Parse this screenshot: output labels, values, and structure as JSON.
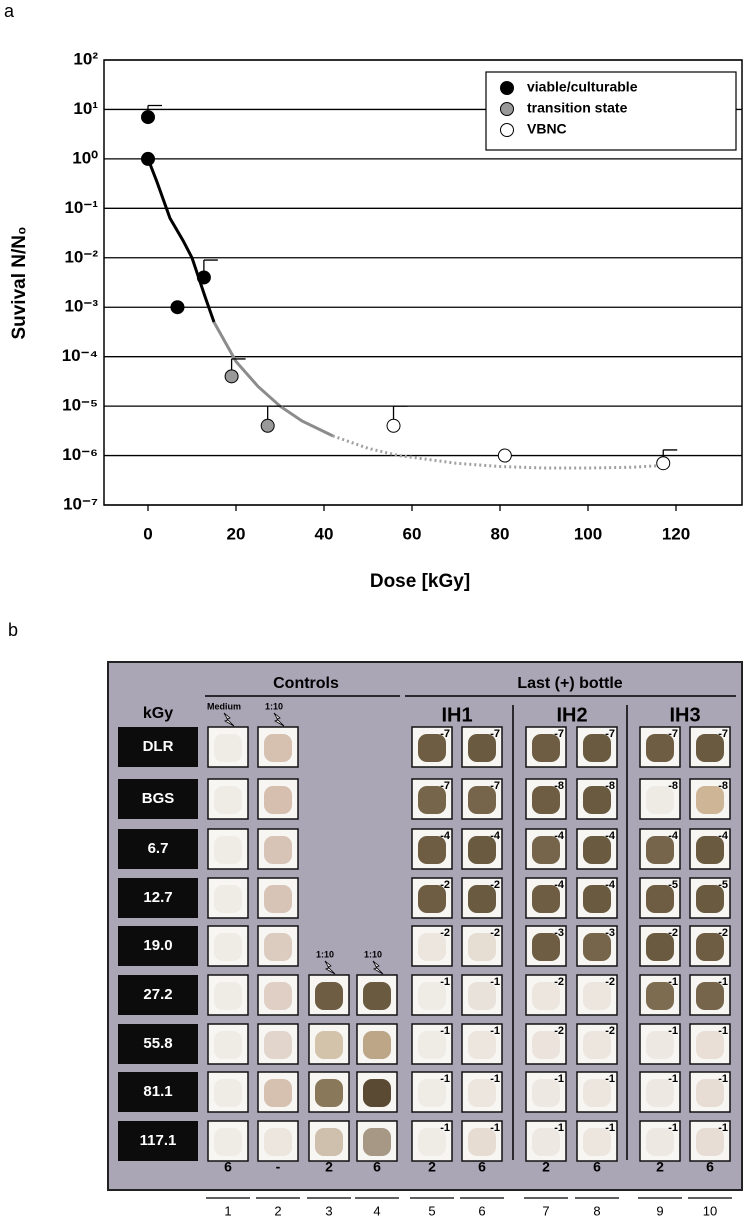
{
  "chart_data": {
    "type": "scatter",
    "panel_label": "a",
    "ylabel": "Suvival N/N₀",
    "xlabel": "Dose [kGy]",
    "xlim": [
      -10,
      135
    ],
    "xticks": [
      0,
      20,
      40,
      60,
      80,
      100,
      120
    ],
    "ylim": [
      1e-07,
      100
    ],
    "log_y": true,
    "grid": true,
    "legend": "upper right",
    "yticks": [
      {
        "value": 1e-07,
        "label": "10⁻⁷"
      },
      {
        "value": 1e-06,
        "label": "10⁻⁶"
      },
      {
        "value": 1e-05,
        "label": "10⁻⁵"
      },
      {
        "value": 0.0001,
        "label": "10⁻⁴"
      },
      {
        "value": 0.001,
        "label": "10⁻³"
      },
      {
        "value": 0.01,
        "label": "10⁻²"
      },
      {
        "value": 0.1,
        "label": "10⁻¹"
      },
      {
        "value": 1,
        "label": "10⁰"
      },
      {
        "value": 10,
        "label": "10¹"
      },
      {
        "value": 100,
        "label": "10²"
      }
    ],
    "series": [
      {
        "name": "viable/culturable",
        "color": "#000000",
        "x": [
          0,
          0,
          6.7,
          12.7
        ],
        "values": [
          7,
          1,
          0.001,
          0.004
        ],
        "errors": [
          5,
          null,
          null,
          0.005
        ]
      },
      {
        "name": "transition state",
        "color": "#999999",
        "x": [
          19.0,
          27.2
        ],
        "values": [
          4e-05,
          4e-06
        ],
        "errors": [
          5e-05,
          6e-06
        ]
      },
      {
        "name": "VBNC",
        "color": "#ffffff",
        "x": [
          55.8,
          81.1,
          117.1
        ],
        "values": [
          4e-06,
          1e-06,
          7e-07
        ],
        "errors": [
          6e-06,
          null,
          6e-07
        ]
      }
    ],
    "fit_segments": [
      {
        "color": "#000000",
        "dashed": false,
        "x": [
          0,
          2,
          5,
          8,
          10,
          13,
          15
        ],
        "values": [
          1,
          0.35,
          0.063,
          0.022,
          0.01,
          0.0016,
          0.0005
        ]
      },
      {
        "color": "#8c8c8c",
        "dashed": false,
        "x": [
          15,
          20,
          25,
          30,
          35,
          42
        ],
        "values": [
          0.0005,
          8e-05,
          2.5e-05,
          1e-05,
          5e-06,
          2.5e-06
        ]
      },
      {
        "color": "#a0a0a0",
        "dashed": true,
        "x": [
          42,
          50,
          57,
          70,
          80,
          90,
          100,
          110,
          117
        ],
        "values": [
          2.5e-06,
          1.4e-06,
          1e-06,
          7e-07,
          6e-07,
          5.6e-07,
          5.6e-07,
          5.8e-07,
          6.3e-07
        ]
      }
    ]
  },
  "panel_b": {
    "panel_label": "b",
    "controls": "Controls",
    "last_bottle": "Last (+) bottle",
    "groups": [
      "IH1",
      "IH2",
      "IH3"
    ],
    "kgy": "kGy",
    "annotations": [
      {
        "text": "Medium",
        "column": 0,
        "row": 0
      },
      {
        "text": "1:10",
        "column": 1,
        "row": 0
      },
      {
        "text": "1:10",
        "column": 2,
        "row": 5
      },
      {
        "text": "1:10",
        "column": 3,
        "row": 5
      }
    ],
    "rows": [
      {
        "label": "DLR",
        "cells": [
          {
            "color": "#efece6"
          },
          {
            "color": "#d6c0b0"
          },
          null,
          null,
          {
            "label": "-7",
            "color": "#6e5d43"
          },
          {
            "label": "-7",
            "color": "#6a5a40"
          },
          {
            "label": "-7",
            "color": "#6e5d43"
          },
          {
            "label": "-7",
            "color": "#6a5a40"
          },
          {
            "label": "-7",
            "color": "#6e5d43"
          },
          {
            "label": "-7",
            "color": "#6a5a40"
          }
        ]
      },
      {
        "label": "BGS",
        "cells": [
          {
            "color": "#efece6"
          },
          {
            "color": "#d6bfae"
          },
          null,
          null,
          {
            "label": "-7",
            "color": "#76654a"
          },
          {
            "label": "-7",
            "color": "#76654a"
          },
          {
            "label": "-8",
            "color": "#6e5d43"
          },
          {
            "label": "-8",
            "color": "#6a5a40"
          },
          {
            "label": "-8",
            "color": "#eeeae4"
          },
          {
            "label": "-8",
            "color": "#cdb596"
          }
        ]
      },
      {
        "label": "6.7",
        "cells": [
          {
            "color": "#efece6"
          },
          {
            "color": "#d8c4b6"
          },
          null,
          null,
          {
            "label": "-4",
            "color": "#6e5d43"
          },
          {
            "label": "-4",
            "color": "#6a5a40"
          },
          {
            "label": "-4",
            "color": "#76654a"
          },
          {
            "label": "-4",
            "color": "#6a5a40"
          },
          {
            "label": "-4",
            "color": "#76654a"
          },
          {
            "label": "-4",
            "color": "#6a5a40"
          }
        ]
      },
      {
        "label": "12.7",
        "cells": [
          {
            "color": "#efece6"
          },
          {
            "color": "#d8c4b6"
          },
          null,
          null,
          {
            "label": "-2",
            "color": "#6e5d43"
          },
          {
            "label": "-2",
            "color": "#6a5a40"
          },
          {
            "label": "-4",
            "color": "#6e5d43"
          },
          {
            "label": "-4",
            "color": "#6a5a40"
          },
          {
            "label": "-5",
            "color": "#6e5d43"
          },
          {
            "label": "-5",
            "color": "#6a5a40"
          }
        ]
      },
      {
        "label": "19.0",
        "cells": [
          {
            "color": "#efece6"
          },
          {
            "color": "#dccbbf"
          },
          null,
          null,
          {
            "label": "-2",
            "color": "#ece6de"
          },
          {
            "label": "-2",
            "color": "#e6ddd3"
          },
          {
            "label": "-3",
            "color": "#6e5d43"
          },
          {
            "label": "-3",
            "color": "#76654a"
          },
          {
            "label": "-2",
            "color": "#6a5a40"
          },
          {
            "label": "-2",
            "color": "#6e5d43"
          }
        ]
      },
      {
        "label": "27.2",
        "cells": [
          {
            "color": "#efece6"
          },
          {
            "color": "#dfcfc5"
          },
          {
            "color": "#6e5d43"
          },
          {
            "color": "#6a5a40"
          },
          {
            "label": "-1",
            "color": "#efece6"
          },
          {
            "label": "-1",
            "color": "#e9e2da"
          },
          {
            "label": "-2",
            "color": "#ece6de"
          },
          {
            "label": "-2",
            "color": "#ece6de"
          },
          {
            "label": "-1",
            "color": "#7e6c50"
          },
          {
            "label": "-1",
            "color": "#76654a"
          }
        ]
      },
      {
        "label": "55.8",
        "cells": [
          {
            "color": "#efece6"
          },
          {
            "color": "#e2d5cc"
          },
          {
            "color": "#d3c3aa"
          },
          {
            "color": "#bca687"
          },
          {
            "label": "-1",
            "color": "#efece6"
          },
          {
            "label": "-1",
            "color": "#ece6de"
          },
          {
            "label": "-2",
            "color": "#ece4dc"
          },
          {
            "label": "-2",
            "color": "#ece6de"
          },
          {
            "label": "-1",
            "color": "#eee8e2"
          },
          {
            "label": "-1",
            "color": "#e9dfd6"
          }
        ]
      },
      {
        "label": "81.1",
        "cells": [
          {
            "color": "#efece6"
          },
          {
            "color": "#d6c0b0"
          },
          {
            "color": "#8a785a"
          },
          {
            "color": "#5a4a33"
          },
          {
            "label": "-1",
            "color": "#efece6"
          },
          {
            "label": "-1",
            "color": "#ece6de"
          },
          {
            "label": "-1",
            "color": "#eee8e2"
          },
          {
            "label": "-1",
            "color": "#ece6de"
          },
          {
            "label": "-1",
            "color": "#eee8e2"
          },
          {
            "label": "-1",
            "color": "#e8ddd4"
          }
        ]
      },
      {
        "label": "117.1",
        "cells": [
          {
            "color": "#efece6"
          },
          {
            "color": "#ece6de"
          },
          {
            "color": "#cfc0ad"
          },
          {
            "color": "#a69885"
          },
          {
            "label": "-1",
            "color": "#efece6"
          },
          {
            "label": "-1",
            "color": "#e6dcd2"
          },
          {
            "label": "-1",
            "color": "#eee8e2"
          },
          {
            "label": "-1",
            "color": "#ece6de"
          },
          {
            "label": "-1",
            "color": "#eee8e2"
          },
          {
            "label": "-1",
            "color": "#e8ddd4"
          }
        ]
      }
    ],
    "bottom_row": [
      "6",
      "-",
      "2",
      "6",
      "2",
      "6",
      "2",
      "6",
      "2",
      "6"
    ],
    "column_numbers": [
      "1",
      "2",
      "3",
      "4",
      "5",
      "6",
      "7",
      "8",
      "9",
      "10"
    ]
  }
}
